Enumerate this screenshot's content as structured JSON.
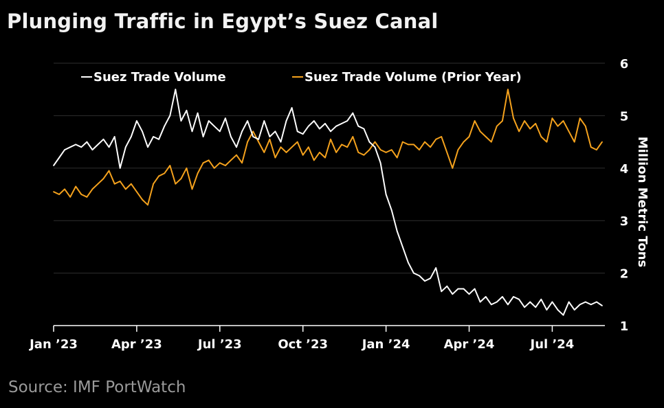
{
  "title": "Plunging Traffic in Egypt’s Suez Canal",
  "source": "Source: IMF PortWatch",
  "chart_data": {
    "type": "line",
    "title": "Plunging Traffic in Egypt’s Suez Canal",
    "xlabel": "",
    "ylabel": "Million Metric Tons",
    "ylim": [
      1,
      6
    ],
    "yticks": [
      1,
      2,
      3,
      4,
      5,
      6
    ],
    "y_axis_position": "right",
    "legend_position": "top",
    "x_start": "Jan 2023",
    "x_end_month_index": 19.9,
    "x_ticks": [
      {
        "label": "Jan ’23",
        "month_index": 0
      },
      {
        "label": "Apr ’23",
        "month_index": 3
      },
      {
        "label": "Jul ’23",
        "month_index": 6
      },
      {
        "label": "Oct ’23",
        "month_index": 9
      },
      {
        "label": "Jan ’24",
        "month_index": 12
      },
      {
        "label": "Apr ’24",
        "month_index": 15
      },
      {
        "label": "Jul ’24",
        "month_index": 18
      }
    ],
    "series": [
      {
        "name": "Suez Trade Volume",
        "color": "#ffffff",
        "points": [
          [
            0.0,
            4.05
          ],
          [
            0.2,
            4.2
          ],
          [
            0.4,
            4.35
          ],
          [
            0.6,
            4.4
          ],
          [
            0.8,
            4.45
          ],
          [
            1.0,
            4.4
          ],
          [
            1.2,
            4.5
          ],
          [
            1.4,
            4.35
          ],
          [
            1.6,
            4.45
          ],
          [
            1.8,
            4.55
          ],
          [
            2.0,
            4.4
          ],
          [
            2.2,
            4.6
          ],
          [
            2.4,
            4.0
          ],
          [
            2.6,
            4.4
          ],
          [
            2.8,
            4.6
          ],
          [
            3.0,
            4.9
          ],
          [
            3.2,
            4.7
          ],
          [
            3.4,
            4.4
          ],
          [
            3.6,
            4.6
          ],
          [
            3.8,
            4.55
          ],
          [
            4.0,
            4.8
          ],
          [
            4.2,
            5.0
          ],
          [
            4.4,
            5.5
          ],
          [
            4.6,
            4.9
          ],
          [
            4.8,
            5.1
          ],
          [
            5.0,
            4.7
          ],
          [
            5.2,
            5.05
          ],
          [
            5.4,
            4.6
          ],
          [
            5.6,
            4.9
          ],
          [
            5.8,
            4.8
          ],
          [
            6.0,
            4.7
          ],
          [
            6.2,
            4.95
          ],
          [
            6.4,
            4.6
          ],
          [
            6.6,
            4.4
          ],
          [
            6.8,
            4.7
          ],
          [
            7.0,
            4.9
          ],
          [
            7.2,
            4.6
          ],
          [
            7.4,
            4.55
          ],
          [
            7.6,
            4.9
          ],
          [
            7.8,
            4.6
          ],
          [
            8.0,
            4.7
          ],
          [
            8.2,
            4.5
          ],
          [
            8.4,
            4.9
          ],
          [
            8.6,
            5.15
          ],
          [
            8.8,
            4.7
          ],
          [
            9.0,
            4.65
          ],
          [
            9.2,
            4.8
          ],
          [
            9.4,
            4.9
          ],
          [
            9.6,
            4.75
          ],
          [
            9.8,
            4.85
          ],
          [
            10.0,
            4.7
          ],
          [
            10.2,
            4.8
          ],
          [
            10.4,
            4.85
          ],
          [
            10.6,
            4.9
          ],
          [
            10.8,
            5.05
          ],
          [
            11.0,
            4.8
          ],
          [
            11.2,
            4.75
          ],
          [
            11.4,
            4.5
          ],
          [
            11.6,
            4.4
          ],
          [
            11.8,
            4.1
          ],
          [
            12.0,
            3.5
          ],
          [
            12.2,
            3.2
          ],
          [
            12.4,
            2.8
          ],
          [
            12.6,
            2.5
          ],
          [
            12.8,
            2.2
          ],
          [
            13.0,
            2.0
          ],
          [
            13.2,
            1.95
          ],
          [
            13.4,
            1.85
          ],
          [
            13.6,
            1.9
          ],
          [
            13.8,
            2.1
          ],
          [
            14.0,
            1.65
          ],
          [
            14.2,
            1.75
          ],
          [
            14.4,
            1.6
          ],
          [
            14.6,
            1.7
          ],
          [
            14.8,
            1.7
          ],
          [
            15.0,
            1.6
          ],
          [
            15.2,
            1.7
          ],
          [
            15.4,
            1.45
          ],
          [
            15.6,
            1.55
          ],
          [
            15.8,
            1.4
          ],
          [
            16.0,
            1.45
          ],
          [
            16.2,
            1.55
          ],
          [
            16.4,
            1.4
          ],
          [
            16.6,
            1.55
          ],
          [
            16.8,
            1.5
          ],
          [
            17.0,
            1.35
          ],
          [
            17.2,
            1.45
          ],
          [
            17.4,
            1.35
          ],
          [
            17.6,
            1.5
          ],
          [
            17.8,
            1.3
          ],
          [
            18.0,
            1.45
          ],
          [
            18.2,
            1.3
          ],
          [
            18.4,
            1.2
          ],
          [
            18.6,
            1.45
          ],
          [
            18.8,
            1.3
          ],
          [
            19.0,
            1.4
          ],
          [
            19.2,
            1.45
          ],
          [
            19.4,
            1.4
          ],
          [
            19.6,
            1.45
          ],
          [
            19.8,
            1.38
          ]
        ]
      },
      {
        "name": "Suez Trade Volume (Prior Year)",
        "color": "#f5a21d",
        "points": [
          [
            0.0,
            3.55
          ],
          [
            0.2,
            3.5
          ],
          [
            0.4,
            3.6
          ],
          [
            0.6,
            3.45
          ],
          [
            0.8,
            3.65
          ],
          [
            1.0,
            3.5
          ],
          [
            1.2,
            3.45
          ],
          [
            1.4,
            3.6
          ],
          [
            1.6,
            3.7
          ],
          [
            1.8,
            3.8
          ],
          [
            2.0,
            3.95
          ],
          [
            2.2,
            3.7
          ],
          [
            2.4,
            3.75
          ],
          [
            2.6,
            3.6
          ],
          [
            2.8,
            3.7
          ],
          [
            3.0,
            3.55
          ],
          [
            3.2,
            3.4
          ],
          [
            3.4,
            3.3
          ],
          [
            3.6,
            3.7
          ],
          [
            3.8,
            3.85
          ],
          [
            4.0,
            3.9
          ],
          [
            4.2,
            4.05
          ],
          [
            4.4,
            3.7
          ],
          [
            4.6,
            3.8
          ],
          [
            4.8,
            4.0
          ],
          [
            5.0,
            3.6
          ],
          [
            5.2,
            3.9
          ],
          [
            5.4,
            4.1
          ],
          [
            5.6,
            4.15
          ],
          [
            5.8,
            4.0
          ],
          [
            6.0,
            4.1
          ],
          [
            6.2,
            4.05
          ],
          [
            6.4,
            4.15
          ],
          [
            6.6,
            4.25
          ],
          [
            6.8,
            4.1
          ],
          [
            7.0,
            4.5
          ],
          [
            7.2,
            4.7
          ],
          [
            7.4,
            4.5
          ],
          [
            7.6,
            4.3
          ],
          [
            7.8,
            4.55
          ],
          [
            8.0,
            4.2
          ],
          [
            8.2,
            4.4
          ],
          [
            8.4,
            4.3
          ],
          [
            8.6,
            4.4
          ],
          [
            8.8,
            4.5
          ],
          [
            9.0,
            4.25
          ],
          [
            9.2,
            4.4
          ],
          [
            9.4,
            4.15
          ],
          [
            9.6,
            4.3
          ],
          [
            9.8,
            4.2
          ],
          [
            10.0,
            4.55
          ],
          [
            10.2,
            4.3
          ],
          [
            10.4,
            4.45
          ],
          [
            10.6,
            4.4
          ],
          [
            10.8,
            4.6
          ],
          [
            11.0,
            4.3
          ],
          [
            11.2,
            4.25
          ],
          [
            11.4,
            4.35
          ],
          [
            11.6,
            4.5
          ],
          [
            11.8,
            4.35
          ],
          [
            12.0,
            4.3
          ],
          [
            12.2,
            4.35
          ],
          [
            12.4,
            4.2
          ],
          [
            12.6,
            4.5
          ],
          [
            12.8,
            4.45
          ],
          [
            13.0,
            4.45
          ],
          [
            13.2,
            4.35
          ],
          [
            13.4,
            4.5
          ],
          [
            13.6,
            4.4
          ],
          [
            13.8,
            4.55
          ],
          [
            14.0,
            4.6
          ],
          [
            14.2,
            4.3
          ],
          [
            14.4,
            4.0
          ],
          [
            14.6,
            4.35
          ],
          [
            14.8,
            4.5
          ],
          [
            15.0,
            4.6
          ],
          [
            15.2,
            4.9
          ],
          [
            15.4,
            4.7
          ],
          [
            15.6,
            4.6
          ],
          [
            15.8,
            4.5
          ],
          [
            16.0,
            4.8
          ],
          [
            16.2,
            4.9
          ],
          [
            16.4,
            5.5
          ],
          [
            16.6,
            4.95
          ],
          [
            16.8,
            4.7
          ],
          [
            17.0,
            4.9
          ],
          [
            17.2,
            4.75
          ],
          [
            17.4,
            4.85
          ],
          [
            17.6,
            4.6
          ],
          [
            17.8,
            4.5
          ],
          [
            18.0,
            4.95
          ],
          [
            18.2,
            4.8
          ],
          [
            18.4,
            4.9
          ],
          [
            18.6,
            4.7
          ],
          [
            18.8,
            4.5
          ],
          [
            19.0,
            4.95
          ],
          [
            19.2,
            4.8
          ],
          [
            19.4,
            4.4
          ],
          [
            19.6,
            4.35
          ],
          [
            19.8,
            4.5
          ]
        ]
      }
    ]
  }
}
